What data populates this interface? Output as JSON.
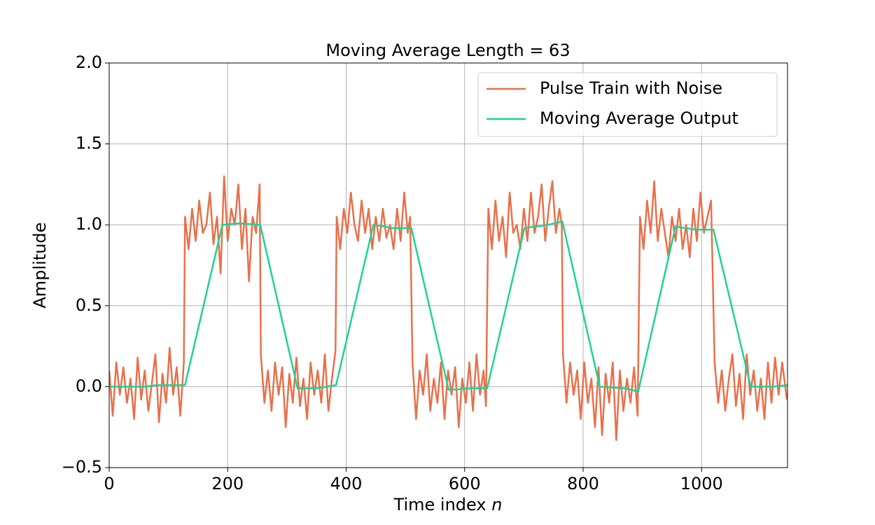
{
  "chart_data": {
    "type": "line",
    "title": "Moving Average Length = 63",
    "xlabel": "Time index",
    "xlabel_italic": "n",
    "ylabel": "Amplitude",
    "xlim": [
      0,
      1145
    ],
    "xticks": [
      0,
      200,
      400,
      600,
      800,
      1000
    ],
    "ylim": [
      -0.5,
      2.0
    ],
    "yticks": [
      {
        "value": -0.5,
        "label": "−0.5"
      },
      {
        "value": 0,
        "label": "0.0"
      },
      0.5,
      {
        "value": 1,
        "label": "1.0"
      },
      1.5,
      {
        "value": 2,
        "label": "2.0"
      }
    ],
    "grid": true,
    "legend": "upper right",
    "series": [
      {
        "name": "Pulse Train with Noise",
        "color": "#e8704a",
        "x": [
          0,
          6,
          12,
          18,
          24,
          30,
          36,
          42,
          48,
          54,
          60,
          66,
          72,
          78,
          84,
          90,
          96,
          102,
          108,
          114,
          120,
          126,
          128,
          134,
          140,
          146,
          152,
          158,
          164,
          170,
          176,
          182,
          188,
          194,
          200,
          206,
          212,
          218,
          224,
          230,
          236,
          242,
          248,
          254,
          256,
          262,
          268,
          274,
          280,
          286,
          292,
          298,
          304,
          310,
          316,
          322,
          328,
          334,
          340,
          346,
          352,
          358,
          364,
          370,
          376,
          382,
          384,
          390,
          396,
          402,
          408,
          414,
          420,
          426,
          432,
          438,
          444,
          450,
          456,
          462,
          468,
          474,
          480,
          486,
          492,
          498,
          504,
          508,
          512,
          518,
          524,
          530,
          536,
          542,
          548,
          554,
          560,
          566,
          572,
          578,
          584,
          590,
          596,
          602,
          608,
          614,
          620,
          626,
          632,
          636,
          640,
          646,
          652,
          658,
          664,
          670,
          676,
          682,
          688,
          694,
          700,
          706,
          712,
          718,
          724,
          730,
          736,
          742,
          748,
          754,
          760,
          764,
          766,
          772,
          778,
          784,
          790,
          796,
          802,
          808,
          814,
          820,
          826,
          832,
          838,
          844,
          850,
          856,
          862,
          868,
          874,
          880,
          886,
          892,
          896,
          902,
          908,
          914,
          920,
          926,
          932,
          938,
          944,
          950,
          956,
          962,
          968,
          974,
          980,
          986,
          992,
          998,
          1004,
          1010,
          1016,
          1022,
          1028,
          1034,
          1040,
          1046,
          1052,
          1058,
          1064,
          1070,
          1076,
          1082,
          1088,
          1094,
          1100,
          1106,
          1112,
          1118,
          1124,
          1130,
          1136,
          1144
        ],
        "values": [
          0.1,
          -0.18,
          0.15,
          -0.05,
          0.12,
          -0.1,
          0.05,
          -0.2,
          0.18,
          -0.08,
          0.1,
          -0.15,
          0.02,
          0.2,
          -0.22,
          0.08,
          -0.1,
          0.24,
          -0.05,
          0.12,
          -0.18,
          0.15,
          1.05,
          0.85,
          1.1,
          0.9,
          1.15,
          0.95,
          1.0,
          1.2,
          0.88,
          1.05,
          0.7,
          1.3,
          0.9,
          1.1,
          1.0,
          1.25,
          0.85,
          1.1,
          0.65,
          1.05,
          0.95,
          1.25,
          0.2,
          -0.1,
          0.1,
          -0.15,
          0.15,
          -0.05,
          0.12,
          -0.25,
          0.08,
          -0.1,
          0.18,
          -0.12,
          0.05,
          -0.2,
          0.15,
          -0.05,
          0.1,
          -0.1,
          0.2,
          -0.15,
          0.05,
          0.22,
          1.05,
          0.85,
          1.1,
          0.95,
          1.2,
          1.0,
          0.9,
          1.15,
          0.95,
          1.1,
          0.85,
          1.05,
          0.9,
          1.1,
          0.92,
          1.0,
          0.85,
          1.1,
          0.9,
          1.2,
          0.95,
          1.05,
          0.15,
          -0.2,
          0.1,
          -0.05,
          0.2,
          -0.15,
          0.05,
          -0.1,
          0.15,
          -0.2,
          0.1,
          -0.05,
          0.12,
          -0.25,
          0.05,
          -0.1,
          0.15,
          -0.15,
          0.2,
          -0.05,
          0.1,
          -0.12,
          1.1,
          0.85,
          1.15,
          0.9,
          1.05,
          0.8,
          1.2,
          0.95,
          1.0,
          0.85,
          1.1,
          0.9,
          1.2,
          0.95,
          1.05,
          1.25,
          0.9,
          1.1,
          1.27,
          0.95,
          1.1,
          1.0,
          0.2,
          -0.1,
          0.15,
          -0.05,
          0.1,
          -0.2,
          0.15,
          -0.1,
          0.05,
          -0.25,
          0.12,
          -0.3,
          0.08,
          -0.1,
          0.15,
          -0.33,
          0.1,
          -0.15,
          0.05,
          -0.1,
          0.12,
          -0.18,
          1.05,
          0.85,
          1.15,
          0.95,
          1.27,
          0.9,
          1.1,
          0.95,
          0.8,
          1.05,
          0.9,
          1.1,
          0.85,
          1.0,
          0.8,
          1.1,
          0.9,
          1.2,
          0.95,
          1.05,
          1.15,
          0.15,
          -0.1,
          0.1,
          -0.15,
          0.05,
          0.2,
          -0.12,
          0.08,
          -0.2,
          0.2,
          -0.05,
          0.1,
          -0.15,
          0.05,
          -0.2,
          0.15,
          -0.1,
          0.18,
          -0.05,
          0.15,
          -0.08
        ]
      },
      {
        "name": "Moving Average Output",
        "color": "#1fd196",
        "x": [
          0,
          60,
          80,
          128,
          191,
          220,
          255,
          318,
          350,
          383,
          446,
          480,
          510,
          573,
          610,
          638,
          701,
          740,
          765,
          828,
          870,
          893,
          956,
          990,
          1020,
          1083,
          1120,
          1145
        ],
        "values": [
          0,
          0,
          0.01,
          0.01,
          1.0,
          1.01,
          1.0,
          -0.01,
          -0.01,
          0.01,
          1.0,
          0.98,
          0.98,
          -0.02,
          -0.01,
          -0.01,
          0.98,
          1.0,
          1.02,
          0,
          -0.01,
          -0.03,
          0.99,
          0.97,
          0.97,
          0,
          0,
          0.01
        ]
      }
    ]
  }
}
